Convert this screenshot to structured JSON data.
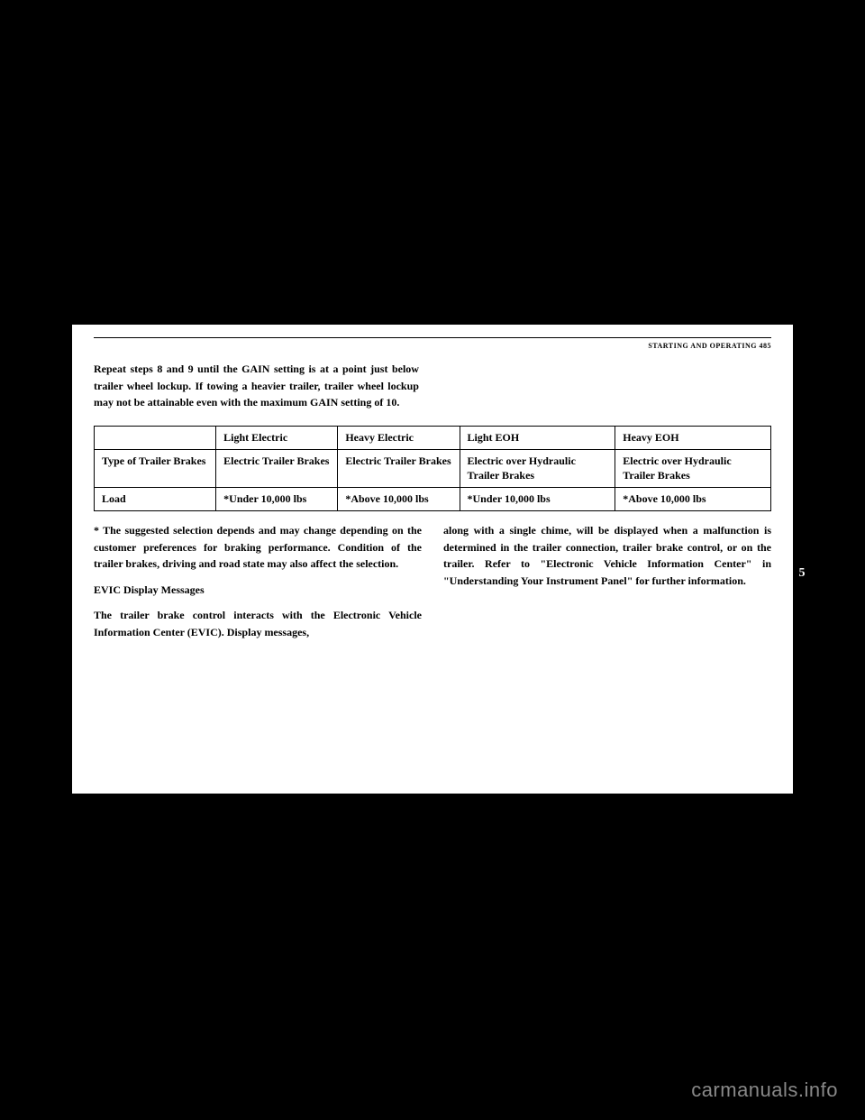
{
  "header": {
    "section": "STARTING AND OPERATING",
    "page_number": "485"
  },
  "intro": "Repeat steps 8 and 9 until the GAIN setting is at a point just below trailer wheel lockup. If towing a heavier trailer, trailer wheel lockup may not be attainable even with the maximum GAIN setting of 10.",
  "table": {
    "headers": [
      "",
      "Light Electric",
      "Heavy Electric",
      "Light EOH",
      "Heavy EOH"
    ],
    "rows": [
      [
        "Type of Trailer Brakes",
        "Electric Trailer Brakes",
        "Electric Trailer Brakes",
        "Electric over Hydraulic Trailer Brakes",
        "Electric over Hydraulic Trailer Brakes"
      ],
      [
        "Load",
        "*Under 10,000 lbs",
        "*Above 10,000 lbs",
        "*Under 10,000 lbs",
        "*Above 10,000 lbs"
      ]
    ]
  },
  "left_col": {
    "note": "* The suggested selection depends and may change depending on the customer preferences for braking performance. Condition of the trailer brakes, driving and road state may also affect the selection.",
    "subhead": "EVIC Display Messages",
    "body": "The trailer brake control interacts with the Electronic Vehicle Information Center (EVIC). Display messages,"
  },
  "right_col": {
    "body": "along with a single chime, will be displayed when a malfunction is determined in the trailer connection, trailer brake control, or on the trailer. Refer to \"Electronic Vehicle Information Center\" in \"Understanding Your Instrument Panel\" for further information."
  },
  "tab": "5",
  "watermark": "carmanuals.info"
}
